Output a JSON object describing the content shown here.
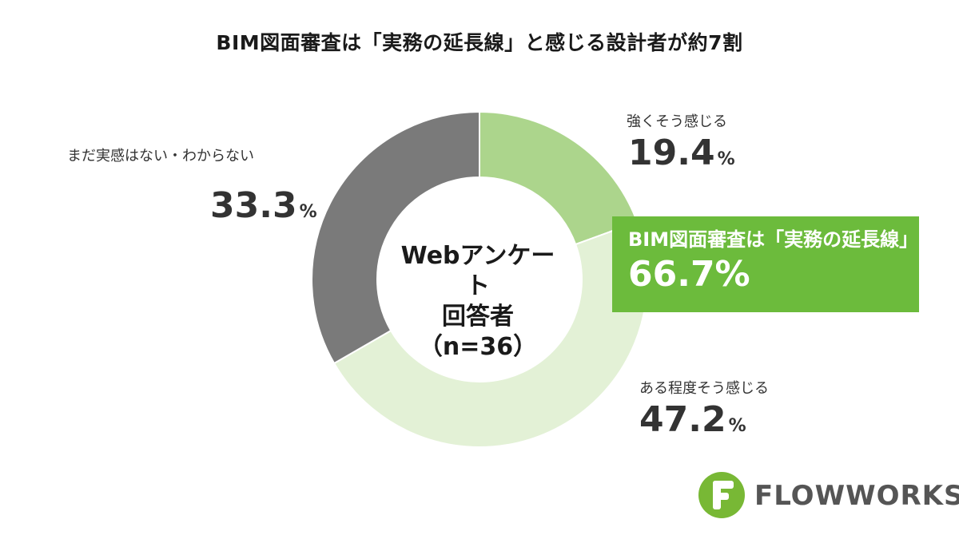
{
  "title": "BIM図面審査は「実務の延長線」と感じる設計者が約7割",
  "center": {
    "line1": "Webアンケート",
    "line2": "回答者",
    "line3": "（n=36）"
  },
  "chart_data": {
    "type": "pie",
    "donut": true,
    "series": [
      {
        "label": "強くそう感じる",
        "value": 19.4,
        "display": "19.4",
        "unit": "%",
        "color": "#acd58c"
      },
      {
        "label": "ある程度そう感じる",
        "value": 47.2,
        "display": "47.2",
        "unit": "%",
        "color": "#e3f1d6"
      },
      {
        "label": "まだ実感はない・わからない",
        "value": 33.3,
        "display": "33.3",
        "unit": "%",
        "color": "#7a7a7a"
      }
    ],
    "callout": {
      "label": "BIM図面審査は「実務の延長線」",
      "value": "66.7%",
      "color": "#6cbb3c"
    }
  },
  "logo": {
    "text": "FLOWWORKS",
    "mark_color": "#78b835"
  }
}
